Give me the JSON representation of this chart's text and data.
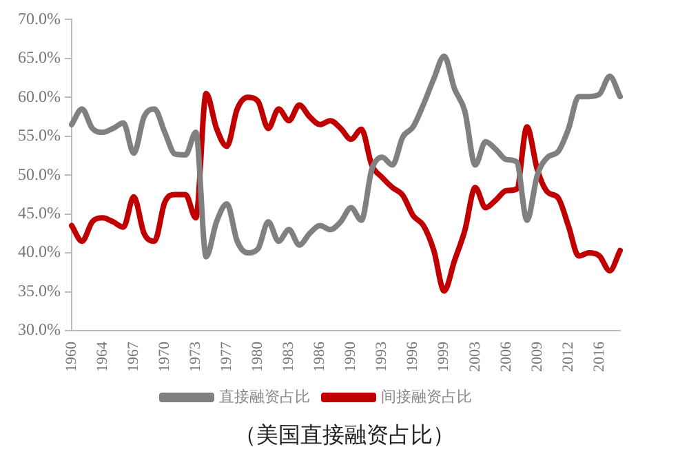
{
  "chart_data": {
    "type": "line",
    "title": "（美国直接融资占比）",
    "categories": [
      "1960",
      null,
      null,
      "1964",
      null,
      null,
      "1967",
      null,
      null,
      "1970",
      null,
      null,
      "1973",
      null,
      null,
      "1977",
      null,
      null,
      "1980",
      null,
      null,
      "1983",
      null,
      null,
      "1986",
      null,
      null,
      "1990",
      null,
      null,
      "1993",
      null,
      null,
      "1996",
      null,
      null,
      "1999",
      null,
      null,
      "2003",
      null,
      null,
      "2006",
      null,
      null,
      "2009",
      null,
      null,
      "2012",
      null,
      null,
      "2016",
      null,
      null
    ],
    "series": [
      {
        "name": "直接融资占比",
        "color": "#808080",
        "values": [
          56.5,
          58.5,
          56,
          55.5,
          56,
          56.7,
          52.8,
          57.5,
          58.5,
          55.5,
          52.7,
          52.6,
          55.5,
          39.5,
          44,
          46.3,
          41.5,
          40,
          40.5,
          44,
          41.5,
          43,
          41,
          42.5,
          43.5,
          43,
          44,
          45.8,
          44.2,
          50.7,
          52.3,
          51.3,
          54.9,
          56.2,
          59.1,
          62.4,
          65.3,
          61.1,
          58.2,
          51.3,
          54.3,
          53.3,
          52,
          51.7,
          44.2,
          50,
          52.3,
          53,
          55.9,
          60.1,
          60.1,
          60.4,
          62.7,
          60.1
        ]
      },
      {
        "name": "间接融资占比",
        "color": "#c00000",
        "values": [
          43.5,
          41.5,
          44,
          44.5,
          44,
          43.3,
          47.2,
          42.5,
          41.5,
          46.5,
          47.5,
          47.5,
          44.5,
          60.5,
          56,
          53.7,
          58.5,
          60,
          59.5,
          56,
          58.5,
          57,
          59,
          57.5,
          56.5,
          57,
          56,
          54.6,
          55.9,
          51.3,
          49.7,
          48.4,
          47.4,
          44.8,
          43.5,
          40.3,
          35.1,
          39,
          42.9,
          48.4,
          45.8,
          46.8,
          48,
          48.2,
          56.2,
          50.7,
          47.8,
          47.1,
          43.5,
          39.6,
          40,
          39.6,
          37.7,
          40.3
        ]
      }
    ],
    "ylim": [
      30,
      70
    ],
    "yticks": [
      {
        "value": 30,
        "label": "30.0%"
      },
      {
        "value": 35,
        "label": "35.0%"
      },
      {
        "value": 40,
        "label": "40.0%"
      },
      {
        "value": 45,
        "label": "45.0%"
      },
      {
        "value": 50,
        "label": "50.0%"
      },
      {
        "value": 55,
        "label": "55.0%"
      },
      {
        "value": 60,
        "label": "60.0%"
      },
      {
        "value": 65,
        "label": "65.0%"
      },
      {
        "value": 70,
        "label": "70.0%"
      }
    ],
    "grid": false,
    "legend": "bottom",
    "marker": "none",
    "line_style": "solid"
  }
}
